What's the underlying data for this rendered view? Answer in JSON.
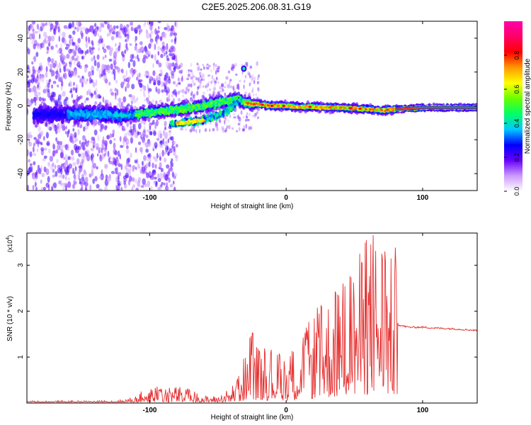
{
  "title": "C2E5.2025.206.08.31.G19",
  "chart_data": [
    {
      "type": "heatmap",
      "xlabel": "Height of straight line (km)",
      "ylabel": "Frequency (Hz)",
      "xlim": [
        -190,
        140
      ],
      "ylim": [
        -50,
        50
      ],
      "xticks": [
        -100,
        0,
        100
      ],
      "xtick_labels": [
        "-100",
        "0",
        "100"
      ],
      "yticks": [
        -40,
        -20,
        0,
        20,
        40
      ],
      "ytick_labels": [
        "-40",
        "-20",
        "0",
        "20",
        "40"
      ],
      "colorbar": {
        "label": "Normalized spectral amplitude",
        "range": [
          0,
          1
        ],
        "ticks": [
          0,
          0.2,
          0.4,
          0.6,
          0.8
        ],
        "tick_labels": [
          "0.0",
          "0.2",
          "0.4",
          "0.6",
          "0.8"
        ],
        "colors": [
          "#ffffff",
          "#cc99ff",
          "#6600ff",
          "#0000ff",
          "#00c8ff",
          "#00ff66",
          "#66ff00",
          "#ffff00",
          "#ff9900",
          "#ff0000",
          "#ff0066",
          "#ff00aa"
        ]
      },
      "ridge": {
        "x": [
          -170,
          -150,
          -130,
          -120,
          -110,
          -100,
          -90,
          -80,
          -70,
          -60,
          -50,
          -40,
          -35,
          -30,
          -25,
          -20,
          -10,
          0,
          10,
          20,
          30,
          40,
          50,
          60,
          70,
          80,
          90,
          100,
          110,
          120,
          140
        ],
        "y": [
          -5,
          -5,
          -5,
          -6,
          -5,
          -4,
          -3,
          -2,
          -1,
          0,
          2,
          3,
          4,
          2,
          1,
          1,
          0,
          0,
          -0.5,
          -0.5,
          -1,
          -1,
          -1.5,
          -2,
          -2.5,
          -2,
          -1.5,
          -1,
          -1,
          -1,
          -1
        ]
      },
      "secondary_branch": {
        "x": [
          -85,
          -75,
          -65,
          -55,
          -45,
          -38,
          -33
        ],
        "y": [
          -11,
          -10,
          -9,
          -7,
          -4,
          0,
          4
        ]
      }
    },
    {
      "type": "line",
      "xlabel": "Height of straight line (km)",
      "ylabel": "SNR (10 * v/v)",
      "y_multiplier": "(x10",
      "y_multiplier_exp": "4",
      "y_multiplier_close": ")",
      "xlim": [
        -190,
        140
      ],
      "ylim": [
        0,
        3.7
      ],
      "xticks": [
        -100,
        0,
        100
      ],
      "xtick_labels": [
        "-100",
        "0",
        "100"
      ],
      "yticks": [
        1,
        2,
        3
      ],
      "ytick_labels": [
        "1",
        "2",
        "3"
      ],
      "color": "#e53030",
      "envelope": {
        "x": [
          -190,
          -140,
          -120,
          -110,
          -100,
          -90,
          -80,
          -70,
          -60,
          -50,
          -40,
          -35,
          -30,
          -25,
          -20,
          -10,
          0,
          10,
          20,
          30,
          40,
          50,
          60,
          65,
          70,
          75,
          80,
          82,
          90,
          100,
          110,
          120,
          130,
          140
        ],
        "y": [
          0.05,
          0.05,
          0.07,
          0.15,
          0.4,
          0.3,
          0.35,
          0.3,
          0.15,
          0.15,
          0.35,
          0.55,
          1.1,
          1.5,
          1.2,
          1.1,
          1.0,
          1.3,
          1.9,
          2.2,
          2.6,
          2.9,
          3.5,
          3.6,
          3.7,
          2.9,
          3.3,
          1.7,
          1.65,
          1.65,
          1.63,
          1.62,
          1.6,
          1.58
        ]
      }
    }
  ]
}
